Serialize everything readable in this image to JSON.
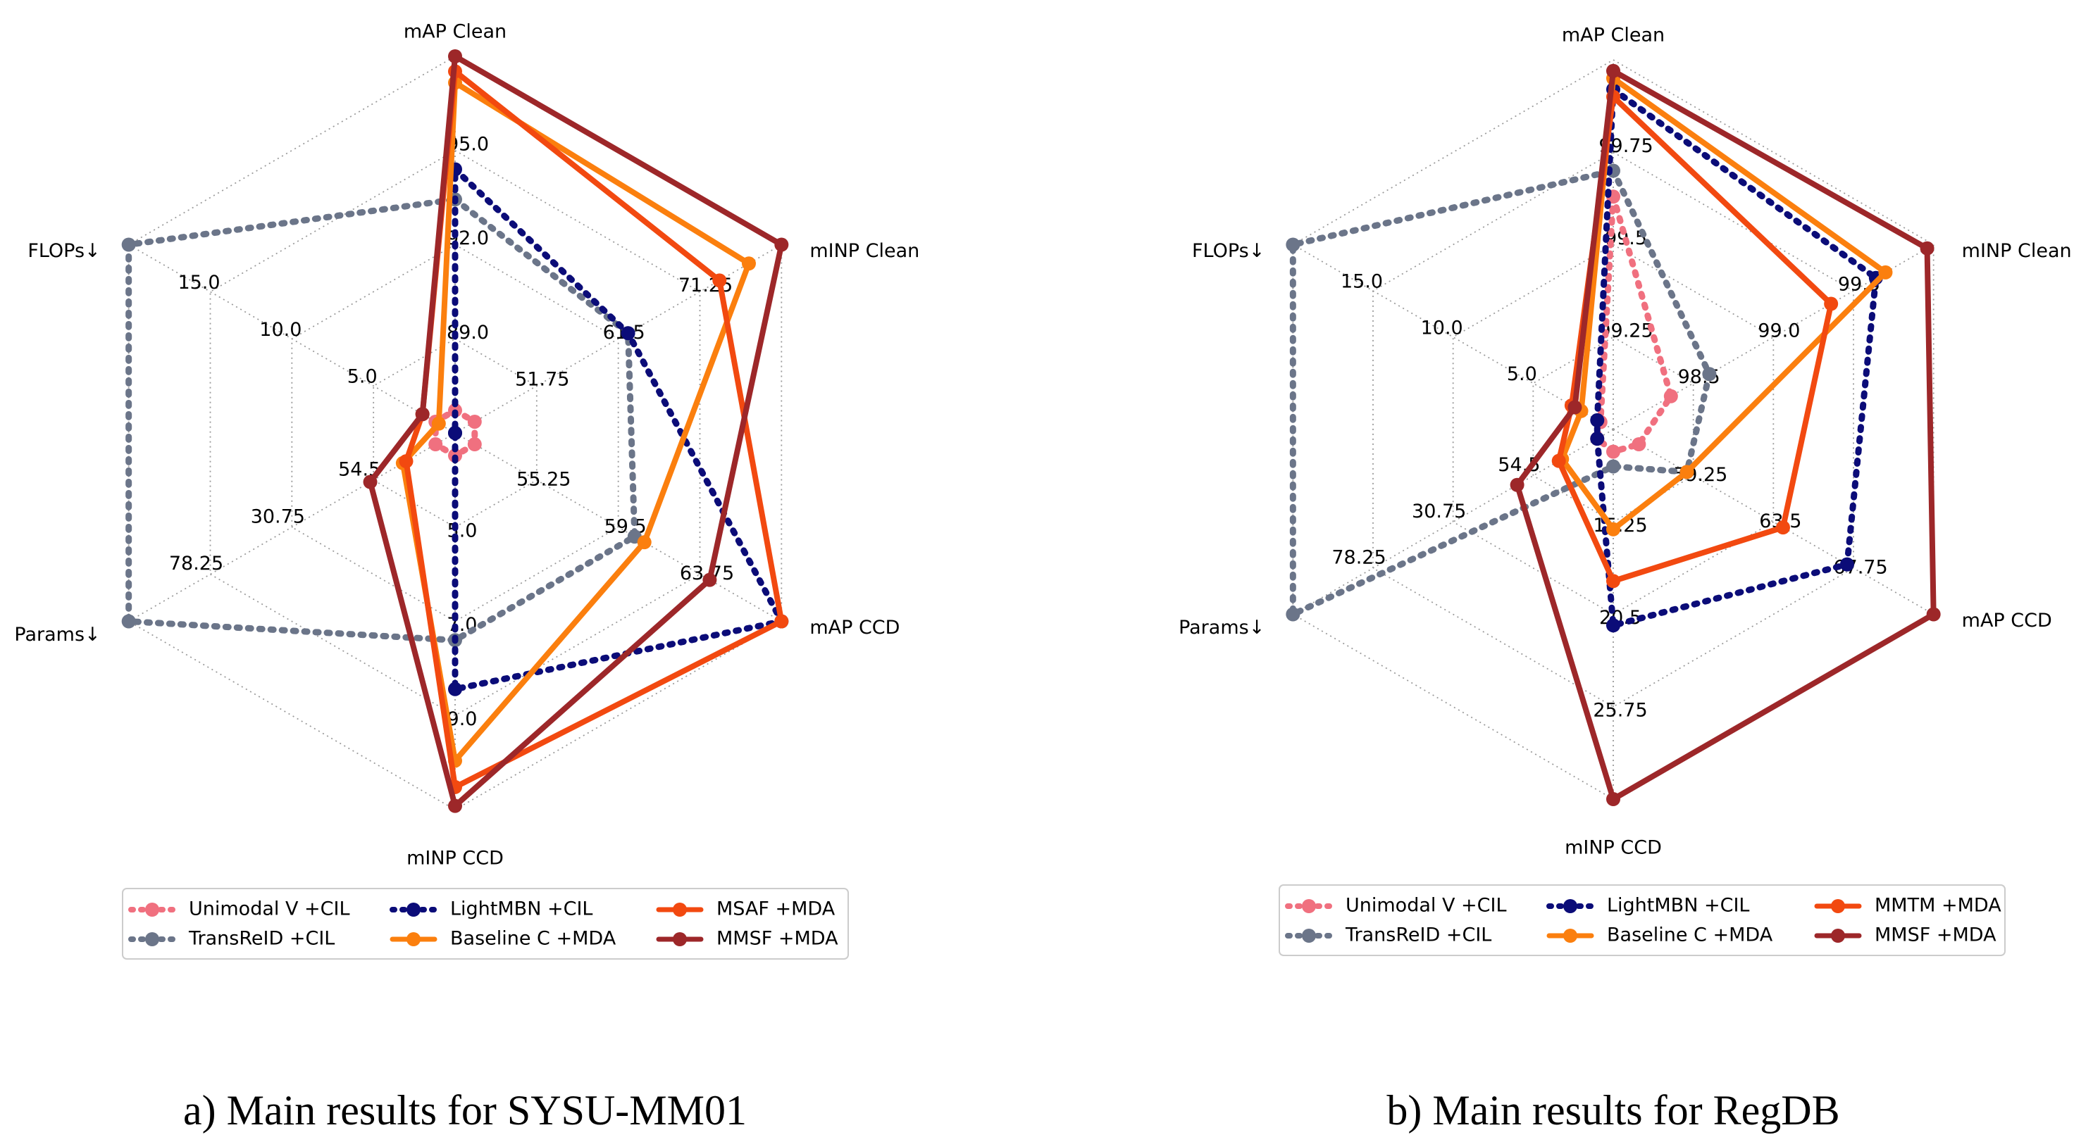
{
  "chart_data": [
    {
      "type": "radar",
      "caption": "a) Main results for SYSU-MM01",
      "axes": [
        "mAP Clean",
        "mINP Clean",
        "mAP CCD",
        "mINP CCD",
        "Params↓",
        "FLOPs↓"
      ],
      "axis_ticks": [
        [
          "89.0",
          "92.0",
          "95.0"
        ],
        [
          "51.75",
          "61.5",
          "71.25"
        ],
        [
          "55.25",
          "59.5",
          "63.75"
        ],
        [
          "5.0",
          "7.0",
          "9.0"
        ],
        [
          "54.5",
          "30.75",
          "78.25"
        ],
        [
          "5.0",
          "10.0",
          "15.0"
        ]
      ],
      "series": [
        {
          "name": "Unimodal V +CIL",
          "color": "#f0707f",
          "style": "dotted",
          "values": [
            0.06,
            0.06,
            0.06,
            0.06,
            0.06,
            0.06
          ]
        },
        {
          "name": "TransReID +CIL",
          "color": "#6b7589",
          "style": "dotted",
          "values": [
            0.62,
            0.53,
            0.55,
            0.55,
            1.0,
            1.0
          ]
        },
        {
          "name": "LightMBN +CIL",
          "color": "#0b0c78",
          "style": "dotted",
          "values": [
            0.7,
            0.53,
            1.0,
            0.68,
            0.0,
            0.0
          ]
        },
        {
          "name": "Baseline C +MDA",
          "color": "#fb7f0e",
          "style": "solid",
          "values": [
            0.93,
            0.9,
            0.58,
            0.87,
            0.16,
            0.05
          ]
        },
        {
          "name": "MSAF +MDA",
          "color": "#f24910",
          "style": "solid",
          "values": [
            0.96,
            0.81,
            1.0,
            0.94,
            0.15,
            0.1
          ]
        },
        {
          "name": "MMSF +MDA",
          "color": "#9d2729",
          "style": "solid",
          "values": [
            1.0,
            1.0,
            0.78,
            0.99,
            0.26,
            0.1
          ]
        }
      ]
    },
    {
      "type": "radar",
      "caption": "b) Main results for RegDB",
      "axes": [
        "mAP Clean",
        "mINP Clean",
        "mAP CCD",
        "mINP CCD",
        "Params↓",
        "FLOPs↓"
      ],
      "axis_ticks": [
        [
          "99.25",
          "99.5",
          "99.75"
        ],
        [
          "98.5",
          "99.0",
          "99.5"
        ],
        [
          "59.25",
          "63.5",
          "67.75"
        ],
        [
          "15.25",
          "20.5",
          "25.75"
        ],
        [
          "54.5",
          "30.75",
          "78.25"
        ],
        [
          "5.0",
          "10.0",
          "15.0"
        ]
      ],
      "series": [
        {
          "name": "Unimodal V +CIL",
          "color": "#f0707f",
          "style": "dotted",
          "values": [
            0.63,
            0.18,
            0.08,
            0.06,
            0.05,
            0.04
          ]
        },
        {
          "name": "TransReID +CIL",
          "color": "#6b7589",
          "style": "dotted",
          "values": [
            0.7,
            0.3,
            0.23,
            0.1,
            1.0,
            1.0
          ]
        },
        {
          "name": "LightMBN +CIL",
          "color": "#0b0c78",
          "style": "dotted",
          "values": [
            0.92,
            0.82,
            0.73,
            0.53,
            0.05,
            0.05
          ]
        },
        {
          "name": "Baseline C +MDA",
          "color": "#fb7f0e",
          "style": "solid",
          "values": [
            0.95,
            0.85,
            0.23,
            0.27,
            0.16,
            0.1
          ]
        },
        {
          "name": "MMTM +MDA",
          "color": "#f24910",
          "style": "solid",
          "values": [
            0.9,
            0.68,
            0.53,
            0.41,
            0.17,
            0.13
          ]
        },
        {
          "name": "MMSF +MDA",
          "color": "#9d2729",
          "style": "solid",
          "values": [
            0.97,
            0.98,
            1.0,
            1.0,
            0.3,
            0.12
          ]
        }
      ]
    }
  ]
}
